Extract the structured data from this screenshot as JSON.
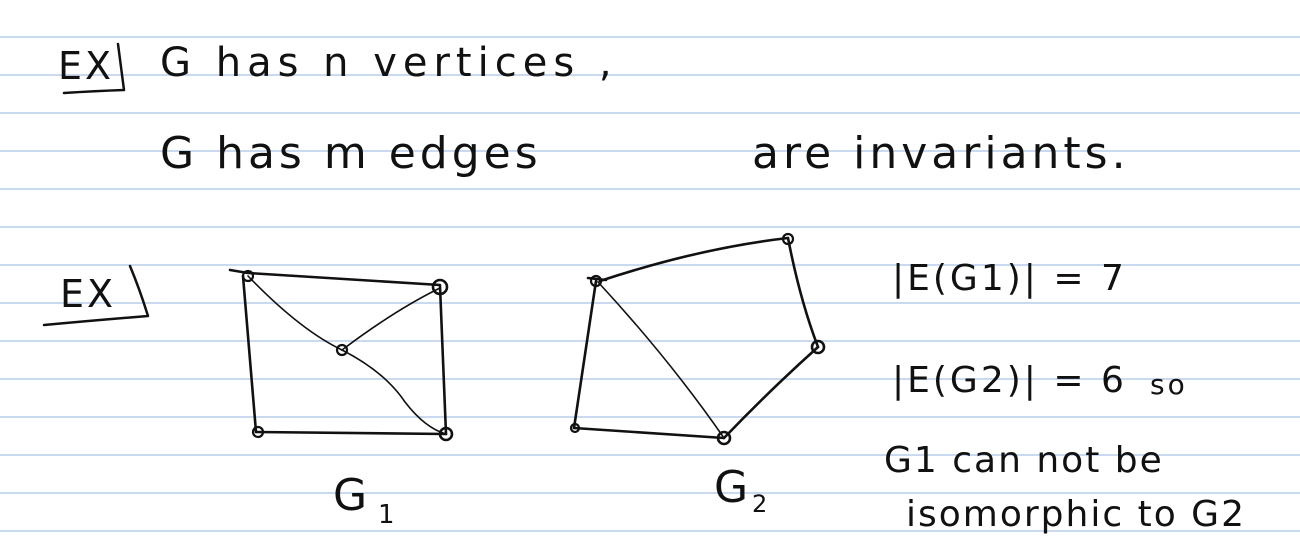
{
  "notes": {
    "ex1": "EX",
    "statement_line1": "G has n vertices ,",
    "statement_line2_a": "G has m edges",
    "statement_line2_b": "are invariants.",
    "ex2": "EX",
    "graph1_label": "G",
    "graph1_sub": "1",
    "graph2_label": "G",
    "graph2_sub": "2",
    "edges_g1": "|E(G1)| = 7",
    "edges_g2": "|E(G2)| = 6",
    "so": "so",
    "conclusion_line1": "G1 can not be",
    "conclusion_line2": "isomorphic to G2"
  },
  "graphs": {
    "g1": {
      "vertices": 5,
      "edges": 7
    },
    "g2": {
      "vertices": 5,
      "edges": 6
    }
  }
}
